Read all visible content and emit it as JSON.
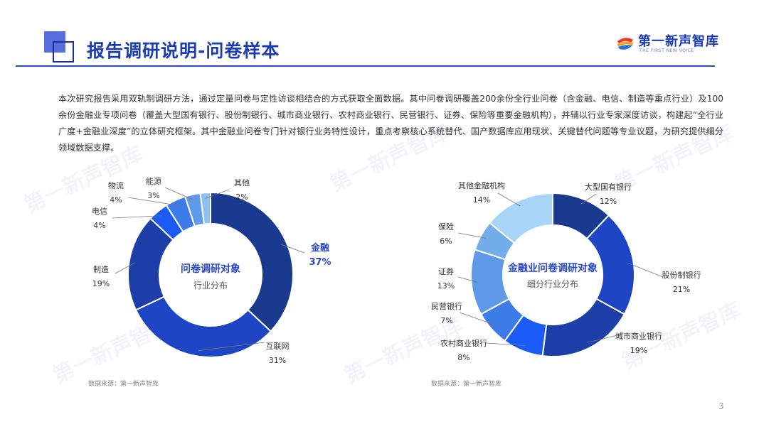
{
  "header": {
    "title": "报告调研说明-问卷样本"
  },
  "logo": {
    "name": "第一新声智库",
    "tagline": "THE FIRST NEW VOICE"
  },
  "intro": "本次研究报告采用双轨制调研方法，通过定量问卷与定性访谈相结合的方式获取全面数据。其中问卷调研覆盖200余份全行业问卷（含金融、电信、制造等重点行业）及100余份金融业专项问卷（覆盖大型国有银行、股份制银行、城市商业银行、农村商业银行、民营银行、证券、保险等重要金融机构），并辅以行业专家深度访谈，构建起“全行业广度+金融业深度”的立体研究框架。其中金融业问卷专门针对银行业务特性设计，重点考察核心系统替代、国产数据库应用现状、关键替代问题等专业议题，为研究提供细分领域数据支撑。",
  "watermark": "第一新声智库",
  "page_number": "3",
  "colors": {
    "accent": "#1b3db0",
    "highlight": "#2a48c8"
  },
  "chart_data": [
    {
      "type": "pie",
      "center_title": "问卷调研对象",
      "center_subtitle": "行业分布",
      "source": "数据来源：第一新声智库",
      "series": [
        {
          "name": "金融",
          "value": 37,
          "label": "37%",
          "color": "#1a3a8f",
          "highlight": true
        },
        {
          "name": "互联网",
          "value": 31,
          "label": "31%",
          "color": "#1e45c4"
        },
        {
          "name": "制造",
          "value": 19,
          "label": "19%",
          "color": "#1f3fa8"
        },
        {
          "name": "电信",
          "value": 4,
          "label": "4%",
          "color": "#1a5cf5"
        },
        {
          "name": "物流",
          "value": 4,
          "label": "4%",
          "color": "#3d7be8"
        },
        {
          "name": "能源",
          "value": 3,
          "label": "3%",
          "color": "#5f9ae8"
        },
        {
          "name": "其他",
          "value": 2,
          "label": "2%",
          "color": "#8ec0f0"
        }
      ]
    },
    {
      "type": "pie",
      "center_title": "金融业问卷调研对象",
      "center_subtitle": "细分行业分布",
      "source": "数据来源：第一新声智库",
      "series": [
        {
          "name": "大型国有银行",
          "value": 12,
          "label": "12%",
          "color": "#1a3a8f"
        },
        {
          "name": "股份制银行",
          "value": 21,
          "label": "21%",
          "color": "#1e45c4"
        },
        {
          "name": "城市商业银行",
          "value": 19,
          "label": "19%",
          "color": "#1f3fa8"
        },
        {
          "name": "农村商业银行",
          "value": 8,
          "label": "8%",
          "color": "#1a5cf5"
        },
        {
          "name": "民营银行",
          "value": 7,
          "label": "7%",
          "color": "#3d7be8"
        },
        {
          "name": "证券",
          "value": 13,
          "label": "13%",
          "color": "#5f9ae8"
        },
        {
          "name": "保险",
          "value": 6,
          "label": "6%",
          "color": "#73aee8"
        },
        {
          "name": "其他金融机构",
          "value": 14,
          "label": "14%",
          "color": "#a8d4f8"
        }
      ]
    }
  ]
}
